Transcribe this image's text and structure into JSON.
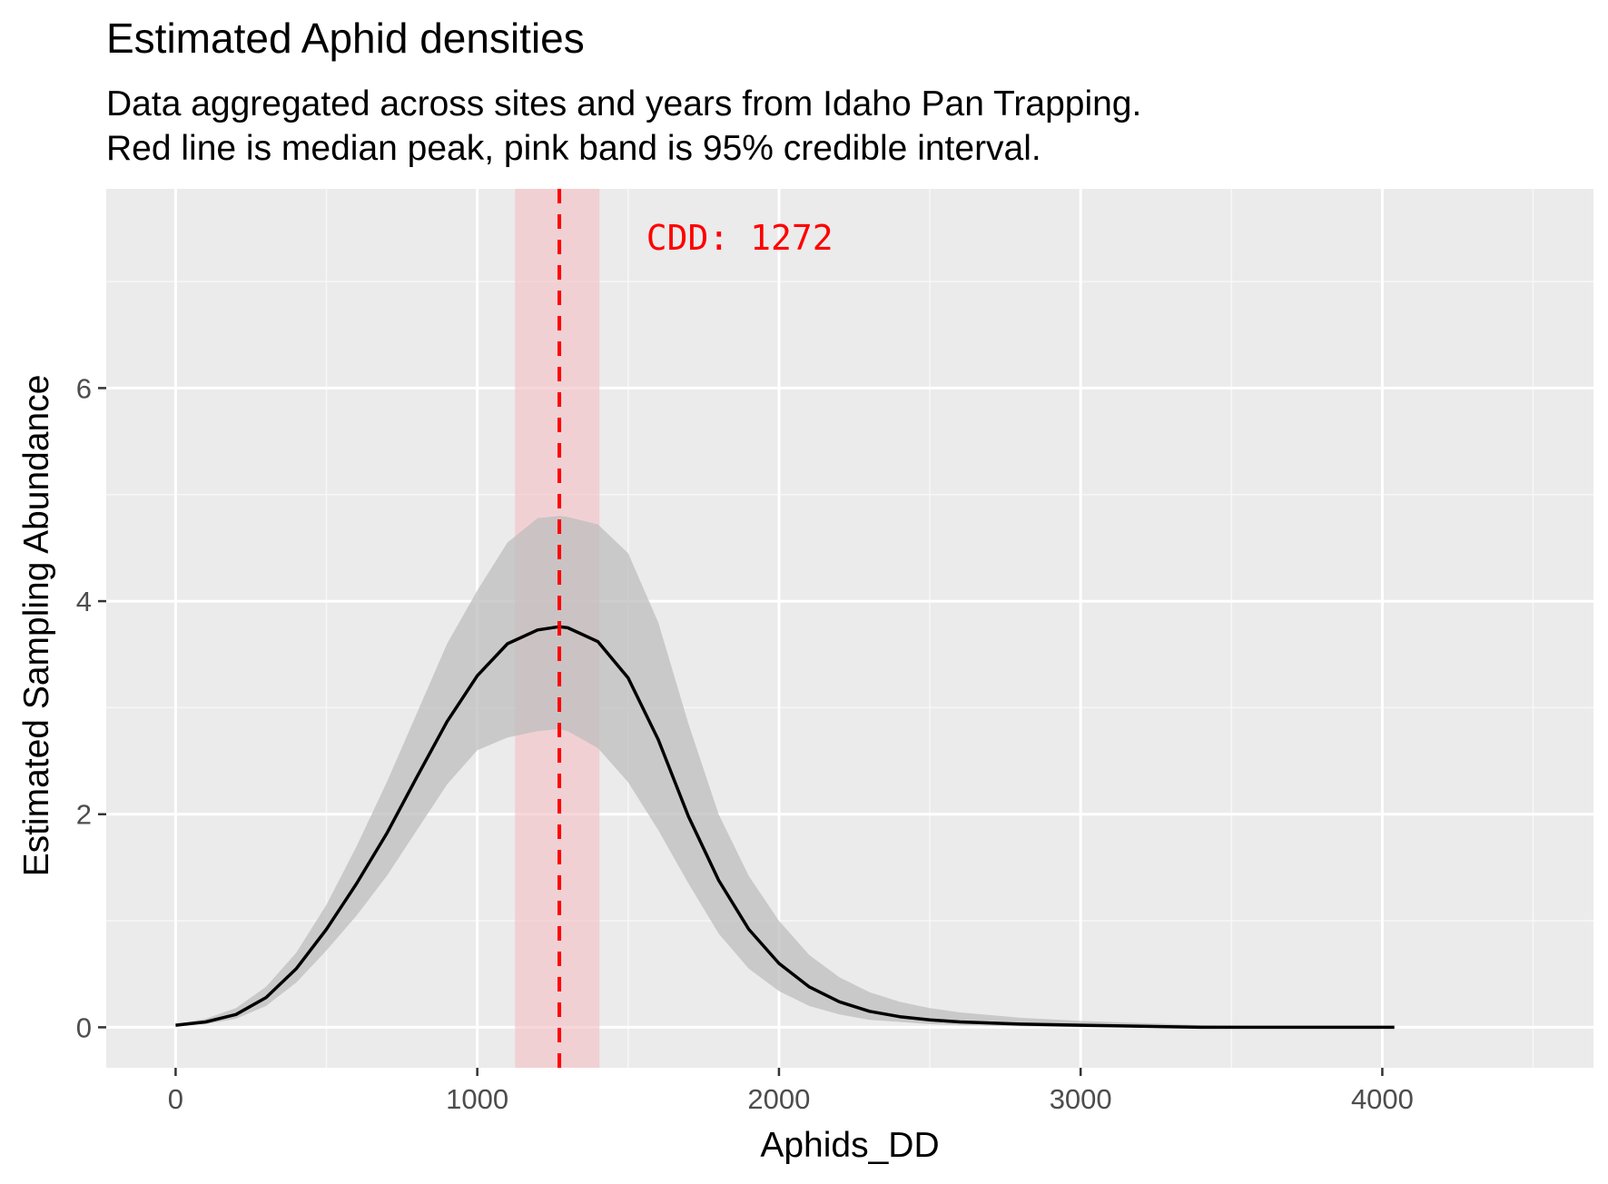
{
  "chart_data": {
    "type": "line",
    "title": "Estimated Aphid densities",
    "subtitle_lines": [
      "Data aggregated across sites and years from Idaho Pan Trapping.",
      "Red line is median peak, pink band is 95% credible interval."
    ],
    "xlabel": "Aphids_DD",
    "ylabel": "Estimated Sampling Abundance",
    "xlim": [
      -230,
      4700
    ],
    "ylim": [
      -0.38,
      7.87
    ],
    "x_ticks": [
      0,
      1000,
      2000,
      3000,
      4000
    ],
    "x_tick_labels": [
      "0",
      "1000",
      "2000",
      "3000",
      "4000"
    ],
    "y_ticks": [
      0,
      2,
      4,
      6
    ],
    "y_tick_labels": [
      "0",
      "2",
      "4",
      "6"
    ],
    "grid": true,
    "annotation": {
      "text": "CDD: 1272",
      "x": 1560,
      "y": 7.4
    },
    "median_peak": {
      "x": 1272,
      "color": "#ff0000"
    },
    "peak_interval": {
      "x_min": 1125,
      "x_max": 1405,
      "color": "#f4c2c6"
    },
    "series": [
      {
        "x": [
          0,
          100,
          200,
          300,
          400,
          500,
          600,
          700,
          800,
          900,
          1000,
          1100,
          1200,
          1272,
          1300,
          1400,
          1500,
          1600,
          1700,
          1800,
          1900,
          2000,
          2100,
          2200,
          2300,
          2400,
          2500,
          2600,
          2800,
          3000,
          3200,
          3400,
          3600,
          3800,
          4040
        ],
        "y": [
          0.02,
          0.05,
          0.12,
          0.28,
          0.55,
          0.92,
          1.35,
          1.82,
          2.35,
          2.87,
          3.3,
          3.6,
          3.73,
          3.76,
          3.75,
          3.62,
          3.28,
          2.7,
          1.98,
          1.38,
          0.92,
          0.6,
          0.38,
          0.24,
          0.15,
          0.1,
          0.07,
          0.05,
          0.03,
          0.02,
          0.01,
          0.0,
          0.0,
          0.0,
          0.0
        ],
        "lower": [
          0.01,
          0.03,
          0.08,
          0.2,
          0.42,
          0.72,
          1.05,
          1.42,
          1.85,
          2.28,
          2.6,
          2.72,
          2.78,
          2.8,
          2.78,
          2.62,
          2.3,
          1.85,
          1.35,
          0.88,
          0.55,
          0.34,
          0.2,
          0.12,
          0.07,
          0.05,
          0.03,
          0.02,
          0.01,
          0.0,
          0.0,
          0.0,
          0.0,
          0.0,
          0.0
        ],
        "upper": [
          0.03,
          0.08,
          0.18,
          0.38,
          0.7,
          1.15,
          1.7,
          2.3,
          2.95,
          3.6,
          4.1,
          4.55,
          4.78,
          4.8,
          4.79,
          4.72,
          4.45,
          3.8,
          2.85,
          2.0,
          1.42,
          1.0,
          0.68,
          0.47,
          0.33,
          0.24,
          0.18,
          0.14,
          0.09,
          0.06,
          0.04,
          0.02,
          0.01,
          0.01,
          0.0
        ],
        "color": "#000000",
        "band_color": "#bdbdbd"
      }
    ],
    "colors": {
      "panel_background": "#ebebeb",
      "grid_major": "#ffffff",
      "grid_minor": "#f7f7f7",
      "tick_label": "#4d4d4d",
      "tick_mark": "#333333",
      "text": "#000000"
    }
  }
}
